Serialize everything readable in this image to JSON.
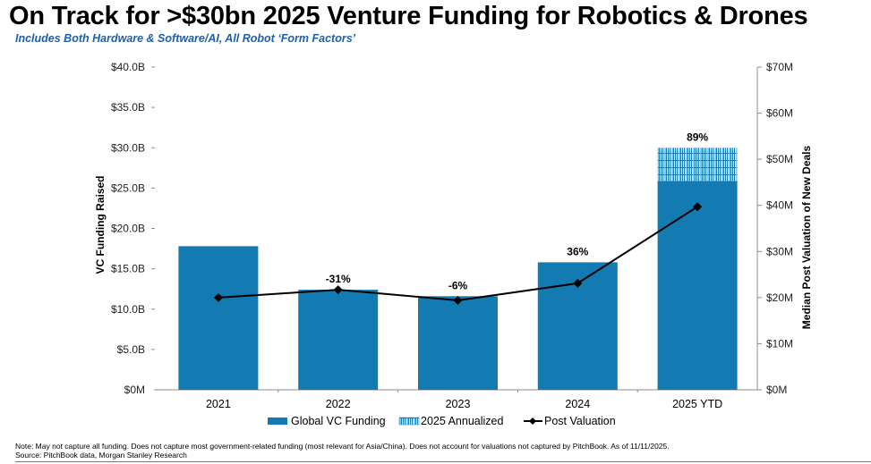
{
  "header": {
    "title": "On Track for >$30bn 2025 Venture Funding for Robotics & Drones",
    "subtitle": "Includes Both Hardware & Software/AI, All Robot ‘Form Factors’"
  },
  "footer": {
    "note": "Note: May not capture all funding. Does not capture most government-related funding (most relevant for Asia/China). Does not account for valuations not captured by PitchBook. As of 11/11/2025.",
    "source": "Source: PitchBook data, Morgan Stanley Research"
  },
  "colors": {
    "bar": "#137bb2",
    "line": "#000000",
    "axis": "#8c8c8c"
  },
  "chart_data": {
    "type": "bar",
    "title": "On Track for >$30bn 2025 Venture Funding for Robotics & Drones",
    "categories": [
      "2021",
      "2022",
      "2023",
      "2024",
      "2025 YTD"
    ],
    "series": [
      {
        "name": "Global VC Funding",
        "type": "bar",
        "axis": "left",
        "unit": "$B",
        "values": [
          17.8,
          12.4,
          11.6,
          15.8,
          25.9
        ]
      },
      {
        "name": "2025 Annualized",
        "type": "bar-stacked-pattern",
        "axis": "left",
        "unit": "$B",
        "values": [
          0,
          0,
          0,
          0,
          4.1
        ]
      },
      {
        "name": "Post Valuation",
        "type": "line",
        "axis": "right",
        "unit": "$M",
        "values": [
          20.0,
          21.7,
          19.4,
          23.1,
          39.7
        ]
      }
    ],
    "data_labels": [
      "",
      "-31%",
      "-6%",
      "36%",
      "89%"
    ],
    "ylabel": "VC Funding Raised",
    "ylim": [
      0,
      40
    ],
    "yticks": [
      "$0M",
      "$5.0B",
      "$10.0B",
      "$15.0B",
      "$20.0B",
      "$25.0B",
      "$30.0B",
      "$35.0B",
      "$40.0B"
    ],
    "y2label": "Median Post Valuation of New Deals",
    "y2lim": [
      0,
      70
    ],
    "y2ticks": [
      "$0M",
      "$10M",
      "$20M",
      "$30M",
      "$40M",
      "$50M",
      "$60M",
      "$70M"
    ],
    "legend": [
      "Global VC Funding",
      "2025 Annualized",
      "Post Valuation"
    ],
    "legend_position": "bottom",
    "grid": false
  }
}
